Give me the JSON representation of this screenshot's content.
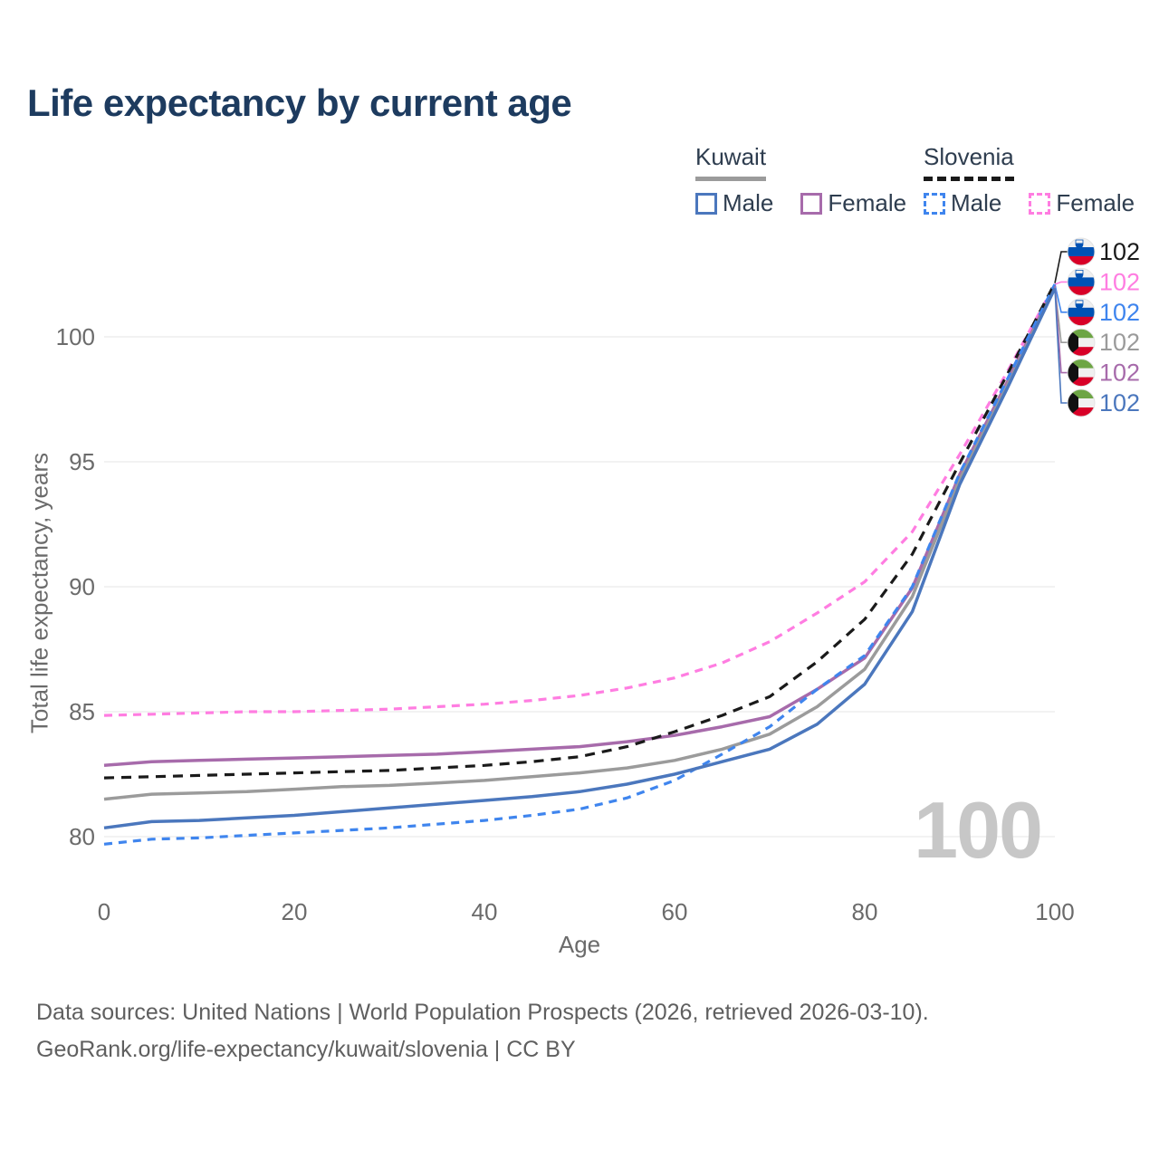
{
  "theme": {
    "title_color": "#1d3b5f",
    "text_color": "#2e3d4f",
    "muted_color": "#6b6b6b",
    "footer_color": "#5f5f5f",
    "grid_color": "#e9e9e9",
    "watermark_color": "#c7c7c7",
    "background": "#ffffff"
  },
  "header": {
    "title": "Life expectancy by current age"
  },
  "legend": {
    "kuwait": {
      "label": "Kuwait",
      "male": "Male",
      "female": "Female"
    },
    "slovenia": {
      "label": "Slovenia",
      "male": "Male",
      "female": "Female"
    }
  },
  "chart_data": {
    "type": "line",
    "title": "Life expectancy by current age",
    "xlabel": "Age",
    "ylabel": "Total life expectancy, years",
    "xlim": [
      0,
      100
    ],
    "ylim": [
      78.5,
      103.2
    ],
    "x_ticks": [
      0,
      20,
      40,
      60,
      80,
      100
    ],
    "y_ticks": [
      80,
      85,
      90,
      95,
      100
    ],
    "grid": "horizontal-only",
    "legend_position": "top-right",
    "age_counter_watermark": "100",
    "x": [
      0,
      5,
      10,
      15,
      20,
      25,
      30,
      35,
      40,
      45,
      50,
      55,
      60,
      65,
      70,
      75,
      80,
      85,
      90,
      95,
      100
    ],
    "series": [
      {
        "name": "Slovenia",
        "country": "Slovenia",
        "sex": "Total",
        "line_style": "dashed",
        "color": "#1a1a1a",
        "flag": "slovenia",
        "end_label": "102",
        "z": 4,
        "values": [
          82.35,
          82.4,
          82.45,
          82.5,
          82.55,
          82.6,
          82.65,
          82.75,
          82.85,
          83.0,
          83.2,
          83.6,
          84.2,
          84.85,
          85.6,
          87.0,
          88.7,
          91.3,
          94.95,
          98.5,
          102.15
        ]
      },
      {
        "name": "Slovenia Female",
        "country": "Slovenia",
        "sex": "Female",
        "line_style": "dashed",
        "color": "#ff7de1",
        "flag": "slovenia",
        "end_label": "102",
        "z": 1,
        "values": [
          84.85,
          84.9,
          84.95,
          85.0,
          85.0,
          85.05,
          85.1,
          85.2,
          85.3,
          85.45,
          85.65,
          85.95,
          86.35,
          86.95,
          87.8,
          88.95,
          90.2,
          92.2,
          95.3,
          98.6,
          102.1
        ]
      },
      {
        "name": "Slovenia Male",
        "country": "Slovenia",
        "sex": "Male",
        "line_style": "dashed",
        "color": "#3f85ee",
        "flag": "slovenia",
        "end_label": "102",
        "z": 5,
        "values": [
          79.7,
          79.9,
          79.95,
          80.05,
          80.15,
          80.25,
          80.35,
          80.5,
          80.65,
          80.85,
          81.1,
          81.55,
          82.25,
          83.3,
          84.4,
          85.9,
          87.25,
          90.0,
          94.55,
          98.3,
          102.1
        ]
      },
      {
        "name": "Kuwait",
        "country": "Kuwait",
        "sex": "Total",
        "line_style": "solid",
        "color": "#9b9b9b",
        "flag": "kuwait",
        "end_label": "102",
        "z": 3,
        "values": [
          81.5,
          81.7,
          81.75,
          81.8,
          81.9,
          82.0,
          82.05,
          82.15,
          82.25,
          82.4,
          82.55,
          82.75,
          83.05,
          83.5,
          84.1,
          85.2,
          86.7,
          89.6,
          94.3,
          98.05,
          102.0
        ]
      },
      {
        "name": "Kuwait Female",
        "country": "Kuwait",
        "sex": "Female",
        "line_style": "solid",
        "color": "#a76bab",
        "flag": "kuwait",
        "end_label": "102",
        "z": 2,
        "values": [
          82.85,
          83.0,
          83.05,
          83.1,
          83.15,
          83.2,
          83.25,
          83.3,
          83.4,
          83.5,
          83.6,
          83.8,
          84.05,
          84.4,
          84.8,
          85.9,
          87.15,
          89.95,
          94.5,
          98.2,
          102.05
        ]
      },
      {
        "name": "Kuwait Male",
        "country": "Kuwait",
        "sex": "Male",
        "line_style": "solid",
        "color": "#4b77bd",
        "flag": "kuwait",
        "end_label": "102",
        "z": 6,
        "values": [
          80.35,
          80.6,
          80.65,
          80.75,
          80.85,
          81.0,
          81.15,
          81.3,
          81.45,
          81.6,
          81.8,
          82.1,
          82.5,
          83.0,
          83.5,
          84.5,
          86.1,
          89.0,
          94.1,
          97.95,
          101.95
        ]
      }
    ],
    "flag_colors": {
      "slovenia": {
        "white": "#f0f0f0",
        "blue": "#0052b4",
        "red": "#d80027"
      },
      "kuwait": {
        "green": "#6da544",
        "white": "#f0f0f0",
        "red": "#d80027",
        "black": "#111111"
      }
    }
  },
  "footer": {
    "line1": "Data sources: United Nations | World Population Prospects (2026, retrieved 2026-03-10).",
    "line2": "GeoRank.org/life-expectancy/kuwait/slovenia | CC BY"
  }
}
